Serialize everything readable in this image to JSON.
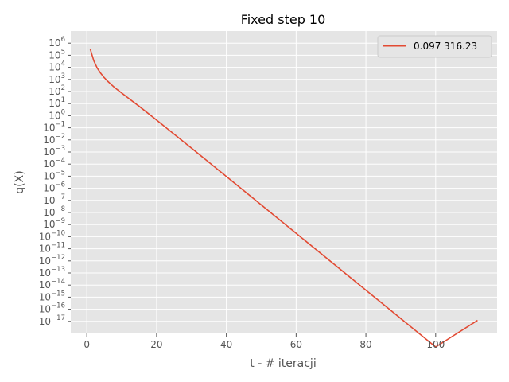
{
  "chart_data": {
    "type": "line",
    "title": "Fixed step 10",
    "xlabel": "t - # iteracji",
    "ylabel": "q(X)",
    "yscale": "log",
    "xlim": [
      -4.6,
      117.6
    ],
    "ylim_exp": [
      -18.0,
      7.0
    ],
    "x_ticks": [
      0,
      20,
      40,
      60,
      80,
      100
    ],
    "y_tick_base": "10",
    "y_tick_exponents": [
      6,
      5,
      4,
      3,
      2,
      1,
      0,
      -1,
      -2,
      -3,
      -4,
      -5,
      -6,
      -7,
      -8,
      -9,
      -10,
      -11,
      -12,
      -13,
      -14,
      -15,
      -16,
      -17
    ],
    "grid": true,
    "legend_position": "upper right",
    "series": [
      {
        "name": "0.097 316.23",
        "color": "#E24A33",
        "points": [
          [
            1,
            316000
          ],
          [
            2,
            35000
          ],
          [
            3,
            8500
          ],
          [
            4,
            3200
          ],
          [
            5,
            1400
          ],
          [
            6,
            700
          ],
          [
            7,
            380
          ],
          [
            8,
            210
          ],
          [
            10,
            75
          ],
          [
            12,
            27
          ],
          [
            15,
            6
          ],
          [
            20,
            0.44
          ],
          [
            30,
            0.0021
          ],
          [
            40,
            9.5e-06
          ],
          [
            60,
            1.9e-10
          ],
          [
            80,
            3.8e-15
          ],
          [
            100,
            7.6e-20
          ],
          [
            112,
            1.2e-17
          ]
        ]
      }
    ]
  }
}
